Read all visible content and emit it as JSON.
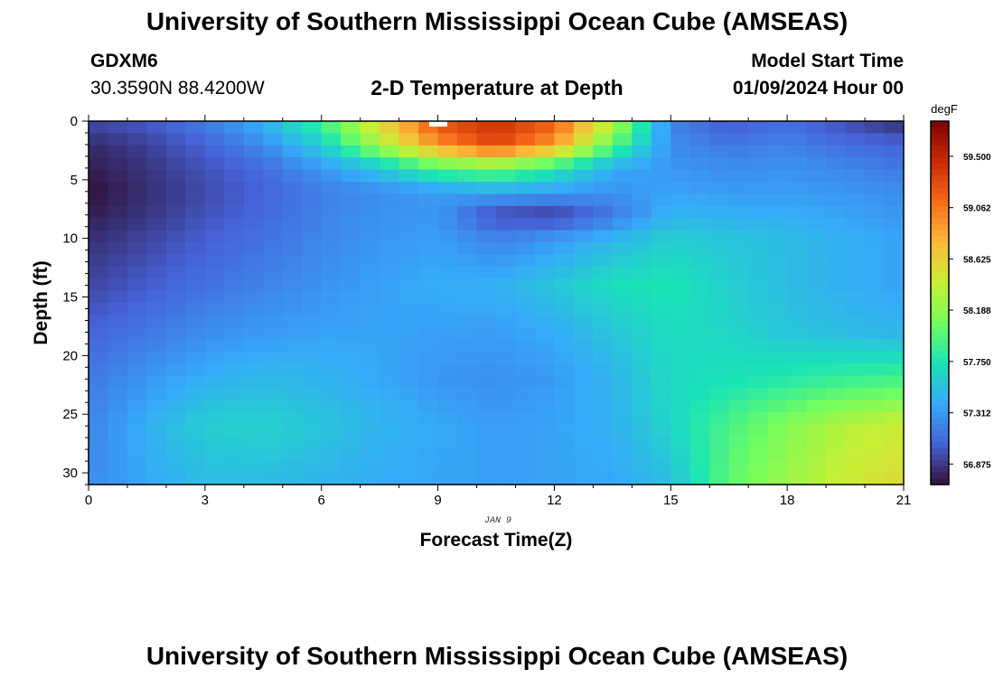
{
  "page": {
    "title": "University of Southern Mississippi Ocean Cube (AMSEAS)",
    "footer_title": "University of Southern Mississippi Ocean Cube (AMSEAS)",
    "station_id": "GDXM6",
    "coordinates": "30.3590N  88.4200W",
    "subtitle": "2-D Temperature at Depth",
    "start_label": "Model Start Time",
    "start_value": "01/09/2024 Hour 00"
  },
  "chart_data": {
    "type": "heatmap",
    "title": "2-D Temperature at Depth",
    "xlabel": "Forecast Time(Z)",
    "ylabel": "Depth (ft)",
    "x_ticks": [
      "0",
      "3",
      "6",
      "9",
      "12",
      "15",
      "18",
      "21"
    ],
    "y_ticks": [
      "0",
      "5",
      "10",
      "15",
      "20",
      "25",
      "30"
    ],
    "xlim": [
      0,
      21
    ],
    "ylim": [
      0,
      31
    ],
    "date_label": "JAN 9",
    "colorbar": {
      "unit": "degF",
      "labels": [
        "59.500",
        "59.062",
        "58.625",
        "58.188",
        "57.750",
        "57.312",
        "56.875"
      ],
      "range": [
        56.7,
        59.8
      ],
      "colors": [
        "#30123b",
        "#4662d7",
        "#36aaf9",
        "#1ae4b6",
        "#72fe5e",
        "#c8ef34",
        "#faba39",
        "#f66b19",
        "#ca2a04",
        "#7a0403"
      ]
    },
    "grid": {
      "columns": 42,
      "rows": 30,
      "depth_nodes_ft": [
        0,
        2,
        4,
        6,
        8,
        10,
        14,
        18,
        22,
        26,
        31
      ],
      "time_nodes_h": [
        0,
        1.5,
        3,
        4.5,
        6,
        7.5,
        9,
        10.5,
        12,
        13.5,
        15,
        16.5,
        18,
        19.5,
        21
      ],
      "temperature_degF": [
        [
          56.95,
          57.02,
          57.18,
          57.45,
          57.9,
          58.6,
          59.25,
          59.45,
          59.2,
          58.4,
          57.2,
          57.0,
          57.1,
          56.95,
          56.8
        ],
        [
          56.8,
          56.9,
          57.05,
          57.25,
          57.6,
          58.3,
          58.95,
          59.3,
          58.9,
          58.0,
          57.25,
          57.15,
          57.2,
          57.1,
          57.05
        ],
        [
          56.75,
          56.85,
          56.98,
          57.1,
          57.3,
          57.55,
          57.95,
          58.1,
          57.8,
          57.4,
          57.3,
          57.25,
          57.28,
          57.22,
          57.15
        ],
        [
          56.7,
          56.82,
          56.95,
          57.05,
          57.18,
          57.26,
          57.32,
          57.4,
          57.35,
          57.28,
          57.36,
          57.32,
          57.33,
          57.3,
          57.25
        ],
        [
          56.75,
          56.85,
          56.98,
          57.08,
          57.2,
          57.28,
          57.3,
          56.95,
          56.9,
          57.15,
          57.45,
          57.42,
          57.4,
          57.35,
          57.3
        ],
        [
          56.82,
          56.92,
          57.03,
          57.12,
          57.22,
          57.3,
          57.34,
          57.2,
          57.3,
          57.45,
          57.6,
          57.55,
          57.5,
          57.42,
          57.35
        ],
        [
          56.92,
          57.02,
          57.12,
          57.2,
          57.28,
          57.35,
          57.4,
          57.42,
          57.55,
          57.7,
          57.75,
          57.6,
          57.5,
          57.42,
          57.35
        ],
        [
          57.05,
          57.15,
          57.25,
          57.32,
          57.35,
          57.36,
          57.34,
          57.33,
          57.4,
          57.55,
          57.7,
          57.65,
          57.55,
          57.5,
          57.45
        ],
        [
          57.15,
          57.3,
          57.42,
          57.48,
          57.45,
          57.38,
          57.3,
          57.27,
          57.32,
          57.45,
          57.68,
          57.72,
          57.78,
          57.85,
          57.9
        ],
        [
          57.2,
          57.42,
          57.6,
          57.62,
          57.55,
          57.45,
          57.38,
          57.33,
          57.36,
          57.42,
          57.65,
          57.92,
          58.15,
          58.35,
          58.45
        ],
        [
          57.25,
          57.38,
          57.5,
          57.5,
          57.45,
          57.4,
          57.36,
          57.34,
          57.35,
          57.38,
          57.5,
          58.0,
          58.25,
          58.45,
          58.55
        ]
      ]
    }
  }
}
